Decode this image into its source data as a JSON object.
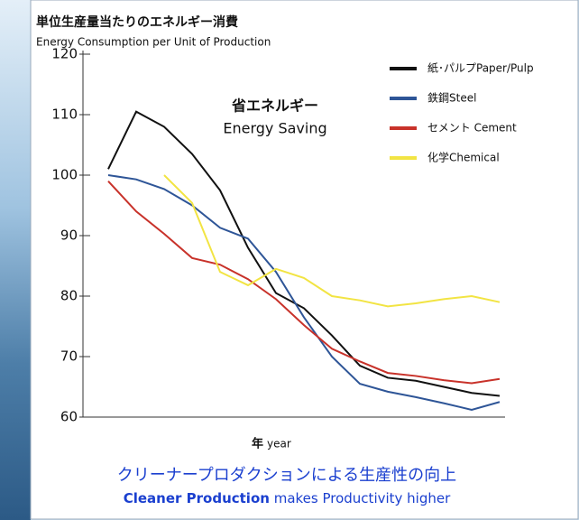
{
  "chart_data": {
    "type": "line",
    "title": "単位生産量当たりのエネルギー消費",
    "subtitle": "Energy Consumption per Unit of Production",
    "annotation": [
      "省エネルギー",
      "Energy Saving"
    ],
    "x_label": [
      "年",
      "year"
    ],
    "footer": {
      "japanese": "クリーナープロダクションによる生産性の向上",
      "english_bold": "Cleaner Production",
      "english_rest": "makes Productivity  higher"
    },
    "categories": [
      null,
      null,
      null,
      null,
      null,
      null,
      null,
      null,
      null,
      null,
      null,
      null,
      null,
      null,
      null
    ],
    "ylim": [
      60,
      120
    ],
    "yticks": [
      60,
      70,
      80,
      90,
      100,
      110,
      120
    ],
    "legend": "top-right",
    "series": [
      {
        "name": "紙･パルプPaper/Pulp",
        "color": "#111111",
        "values": [
          101,
          110.5,
          108,
          103.5,
          97.5,
          88,
          80.5,
          78,
          73.5,
          68.5,
          66.5,
          66,
          65,
          64,
          63.5
        ]
      },
      {
        "name": "鉄鋼Steel",
        "color": "#2e5597",
        "values": [
          100,
          99.3,
          97.7,
          95,
          91.3,
          89.5,
          84,
          76.5,
          70,
          65.5,
          64.2,
          63.3,
          62.3,
          61.2,
          62.5
        ]
      },
      {
        "name": "セメント Cement",
        "color": "#c8322a",
        "values": [
          99,
          94,
          90.3,
          86.3,
          85.2,
          82.8,
          79.5,
          75.2,
          71.3,
          69.2,
          67.3,
          66.8,
          66.1,
          65.6,
          66.3
        ]
      },
      {
        "name": "化学Chemical",
        "color": "#f2e443",
        "values": [
          null,
          null,
          100,
          95.4,
          84,
          81.8,
          84.5,
          83,
          80,
          79.3,
          78.3,
          78.8,
          79.5,
          80,
          79
        ]
      }
    ]
  }
}
